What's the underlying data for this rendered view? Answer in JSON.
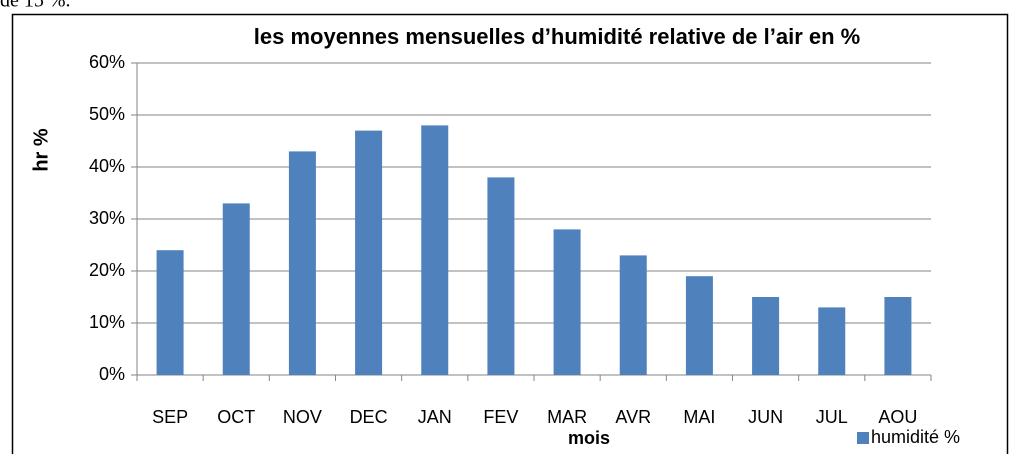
{
  "text_above": "de 15 %.",
  "chart_data": {
    "type": "bar",
    "title": "les moyennes mensuelles d’humidité relative de l’air en  %",
    "x_label": "mois",
    "y_label": "hr %",
    "categories": [
      "SEP",
      "OCT",
      "NOV",
      "DEC",
      "JAN",
      "FEV",
      "MAR",
      "AVR",
      "MAI",
      "JUN",
      "JUL",
      "AOU"
    ],
    "series": [
      {
        "name": "humidité %",
        "color": "#4f81bd",
        "values": [
          24,
          33,
          43,
          47,
          48,
          38,
          28,
          23,
          19,
          15,
          13,
          15
        ]
      }
    ],
    "ylim": [
      0,
      60
    ],
    "yticks": [
      {
        "value": 0,
        "label": "0%"
      },
      {
        "value": 10,
        "label": "10%"
      },
      {
        "value": 20,
        "label": "20%"
      },
      {
        "value": 30,
        "label": "30%"
      },
      {
        "value": 40,
        "label": "40%"
      },
      {
        "value": 50,
        "label": "50%"
      },
      {
        "value": 60,
        "label": "60%"
      }
    ],
    "grid": true,
    "legend": "bottom-right"
  }
}
